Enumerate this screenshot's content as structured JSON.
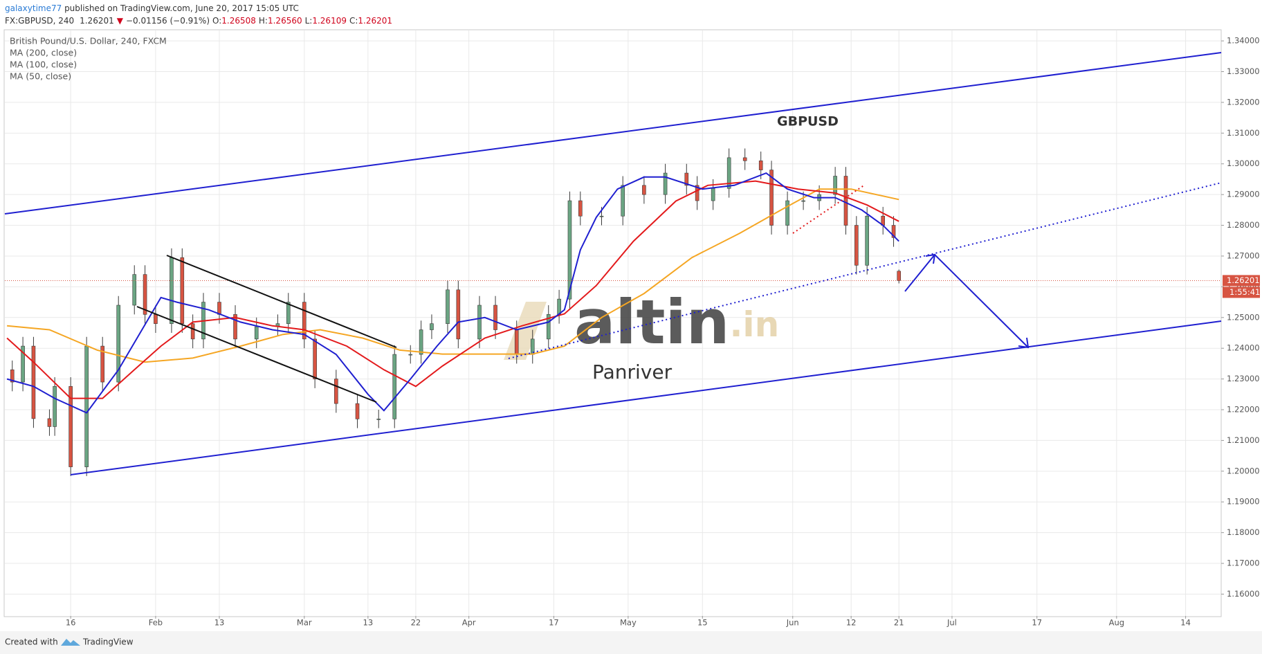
{
  "header": {
    "user": "galaxytime77",
    "published": " published on TradingView.com, June 20, 2017 15:05 UTC",
    "symbol": "FX:GBPUSD, 240",
    "last": "1.26201",
    "direction": "▼",
    "change": "−0.01156 (−0.91%)",
    "ohlc_keys": [
      "O:",
      "H:",
      "L:",
      "C:"
    ],
    "ohlc": [
      "1.26508",
      "1.26560",
      "1.26109",
      "1.26201"
    ],
    "countdown": "1:55:41"
  },
  "footer": {
    "created": "Created with",
    "brand": "TradingView"
  },
  "chart_data": {
    "type": "candlestick",
    "title": "British Pound/U.S. Dollar, 240, FXCM",
    "up_color": "#6ba583",
    "down_color": "#d75442",
    "grid": true,
    "x": [
      5,
      7,
      9,
      12,
      13,
      16,
      19,
      22,
      25,
      28,
      30,
      32,
      35,
      37,
      39,
      41,
      44,
      47,
      51,
      55,
      57,
      60,
      62,
      66,
      70,
      74,
      77,
      80,
      82,
      84,
      87,
      89,
      93,
      96,
      100,
      103,
      106,
      108,
      110,
      112,
      116,
      120,
      124,
      128,
      132,
      134,
      137,
      140,
      143,
      146,
      148,
      151,
      154,
      157,
      160,
      162,
      164,
      166,
      169,
      171,
      172
    ],
    "open": [
      1.233,
      1.229,
      1.2407,
      1.2171,
      1.2145,
      1.2276,
      1.2014,
      1.2407,
      1.229,
      1.254,
      1.264,
      1.251,
      1.248,
      1.2695,
      1.248,
      1.243,
      1.255,
      1.251,
      1.243,
      1.247,
      1.248,
      1.255,
      1.243,
      1.23,
      1.222,
      1.217,
      1.217,
      1.238,
      1.238,
      1.246,
      1.248,
      1.259,
      1.243,
      1.254,
      1.246,
      1.238,
      1.243,
      1.251,
      1.256,
      1.288,
      1.283,
      1.283,
      1.293,
      1.29,
      1.297,
      1.293,
      1.288,
      1.292,
      1.302,
      1.301,
      1.298,
      1.28,
      1.288,
      1.288,
      1.29,
      1.296,
      1.28,
      1.267,
      1.283,
      1.28,
      1.26508
    ],
    "high": [
      1.236,
      1.2437,
      1.2437,
      1.2201,
      1.2306,
      1.2306,
      1.2437,
      1.2437,
      1.257,
      1.267,
      1.267,
      1.254,
      1.2725,
      1.2725,
      1.251,
      1.258,
      1.258,
      1.254,
      1.25,
      1.251,
      1.258,
      1.258,
      1.246,
      1.233,
      1.225,
      1.22,
      1.241,
      1.241,
      1.249,
      1.251,
      1.262,
      1.262,
      1.257,
      1.257,
      1.249,
      1.246,
      1.254,
      1.259,
      1.291,
      1.291,
      1.286,
      1.296,
      1.296,
      1.3,
      1.3,
      1.296,
      1.295,
      1.305,
      1.305,
      1.304,
      1.301,
      1.291,
      1.291,
      1.293,
      1.299,
      1.299,
      1.283,
      1.286,
      1.286,
      1.283,
      1.2656
    ],
    "low": [
      1.226,
      1.226,
      1.2141,
      1.2115,
      1.2115,
      1.1984,
      1.1984,
      1.226,
      1.226,
      1.251,
      1.248,
      1.245,
      1.245,
      1.245,
      1.24,
      1.24,
      1.248,
      1.24,
      1.24,
      1.244,
      1.245,
      1.24,
      1.227,
      1.219,
      1.214,
      1.214,
      1.214,
      1.235,
      1.235,
      1.243,
      1.245,
      1.24,
      1.24,
      1.243,
      1.235,
      1.235,
      1.24,
      1.248,
      1.253,
      1.28,
      1.28,
      1.28,
      1.287,
      1.287,
      1.29,
      1.285,
      1.285,
      1.289,
      1.298,
      1.295,
      1.277,
      1.277,
      1.285,
      1.285,
      1.287,
      1.277,
      1.264,
      1.264,
      1.277,
      1.273,
      1.26109
    ],
    "close": [
      1.229,
      1.2407,
      1.2171,
      1.2145,
      1.2276,
      1.2014,
      1.2407,
      1.229,
      1.254,
      1.264,
      1.251,
      1.248,
      1.2695,
      1.248,
      1.243,
      1.255,
      1.251,
      1.243,
      1.247,
      1.248,
      1.255,
      1.243,
      1.23,
      1.222,
      1.217,
      1.217,
      1.238,
      1.238,
      1.246,
      1.248,
      1.259,
      1.243,
      1.254,
      1.246,
      1.238,
      1.243,
      1.251,
      1.256,
      1.288,
      1.283,
      1.283,
      1.293,
      1.29,
      1.297,
      1.293,
      1.288,
      1.292,
      1.302,
      1.301,
      1.298,
      1.28,
      1.288,
      1.288,
      1.29,
      1.296,
      1.28,
      1.267,
      1.283,
      1.28,
      1.276,
      1.26201
    ],
    "series": [
      {
        "name": "MA (200, close)",
        "color": "#f5a623",
        "x": [
          4,
          12,
          21,
          30,
          39,
          48,
          56,
          63,
          71,
          78,
          86,
          94,
          103,
          109,
          116,
          124,
          133,
          142,
          150,
          157,
          163,
          172
        ],
        "values": [
          1.2473,
          1.246,
          1.2394,
          1.2355,
          1.2368,
          1.2407,
          1.2445,
          1.246,
          1.2433,
          1.2394,
          1.2381,
          1.2381,
          1.2381,
          1.2407,
          1.25,
          1.2578,
          1.2695,
          1.2774,
          1.2852,
          1.2918,
          1.2918,
          1.2884
        ]
      },
      {
        "name": "MA (100, close)",
        "color": "#e31a1c",
        "x": [
          4,
          9,
          16,
          22,
          28,
          33,
          39,
          47,
          54,
          60,
          68,
          75,
          81,
          86,
          94,
          101,
          109,
          115,
          122,
          130,
          136,
          145,
          153,
          160,
          166,
          172
        ],
        "values": [
          1.2433,
          1.2355,
          1.2237,
          1.2237,
          1.233,
          1.2407,
          1.2485,
          1.25,
          1.2473,
          1.246,
          1.2407,
          1.233,
          1.2276,
          1.2342,
          1.2433,
          1.2473,
          1.2512,
          1.2604,
          1.2748,
          1.2879,
          1.293,
          1.2944,
          1.2918,
          1.2905,
          1.2866,
          1.2813
        ]
      },
      {
        "name": "MA (50, close)",
        "color": "#1f1fd0",
        "x": [
          4,
          9,
          13,
          19,
          25,
          33,
          36,
          42,
          48,
          54,
          60,
          66,
          72,
          75,
          80,
          85,
          89,
          94,
          100,
          106,
          109,
          112,
          115,
          119,
          124,
          128,
          135,
          141,
          147,
          151,
          156,
          160,
          165,
          169,
          172
        ],
        "values": [
          1.23,
          1.2276,
          1.2237,
          1.219,
          1.233,
          1.2565,
          1.255,
          1.2525,
          1.2485,
          1.246,
          1.2445,
          1.238,
          1.225,
          1.2197,
          1.23,
          1.2407,
          1.2485,
          1.25,
          1.246,
          1.2485,
          1.2525,
          1.272,
          1.2826,
          1.2918,
          1.2957,
          1.2957,
          1.2918,
          1.293,
          1.297,
          1.2918,
          1.289,
          1.289,
          1.285,
          1.28,
          1.2748
        ]
      }
    ],
    "xlim": [
      3.6,
      232.7
    ],
    "xticks": [
      16,
      {
        "value": 32,
        "label": "Feb"
      },
      {
        "value": 44,
        "label": "13"
      },
      {
        "value": 60,
        "label": "Mar"
      },
      {
        "value": 72,
        "label": "13"
      },
      {
        "value": 81,
        "label": "22"
      },
      {
        "value": 91,
        "label": "Apr"
      },
      {
        "value": 107,
        "label": "17"
      },
      {
        "value": 121,
        "label": "May"
      },
      {
        "value": 135,
        "label": "15"
      },
      {
        "value": 152,
        "label": "Jun"
      },
      {
        "value": 163,
        "label": "12"
      },
      {
        "value": 172,
        "label": "21"
      },
      {
        "value": 182,
        "label": "Jul"
      },
      {
        "value": 198,
        "label": "17"
      },
      {
        "value": 213,
        "label": "Aug"
      },
      {
        "value": 226,
        "label": "14"
      }
    ],
    "ylim": [
      1.1529,
      1.3434
    ],
    "yticks": [
      {
        "value": 1.16,
        "label": "1.16000"
      },
      {
        "value": 1.17,
        "label": "1.17000"
      },
      {
        "value": 1.18,
        "label": "1.18000"
      },
      {
        "value": 1.19,
        "label": "1.19000"
      },
      {
        "value": 1.2,
        "label": "1.20000"
      },
      {
        "value": 1.21,
        "label": "1.21000"
      },
      {
        "value": 1.22,
        "label": "1.22000"
      },
      {
        "value": 1.23,
        "label": "1.23000"
      },
      {
        "value": 1.24,
        "label": "1.24000"
      },
      {
        "value": 1.25,
        "label": "1.25000"
      },
      {
        "value": 1.26,
        "label": "1.26000"
      },
      {
        "value": 1.27,
        "label": "1.27000"
      },
      {
        "value": 1.28,
        "label": "1.28000"
      },
      {
        "value": 1.29,
        "label": "1.29000"
      },
      {
        "value": 1.3,
        "label": "1.30000"
      },
      {
        "value": 1.31,
        "label": "1.31000"
      },
      {
        "value": 1.32,
        "label": "1.32000"
      },
      {
        "value": 1.33,
        "label": "1.33000"
      },
      {
        "value": 1.34,
        "label": "1.34000"
      }
    ],
    "annotations": {
      "label": "GBPUSD",
      "watermark": "altin",
      "watermark_suffix": ".in",
      "author": "Panriver"
    }
  }
}
